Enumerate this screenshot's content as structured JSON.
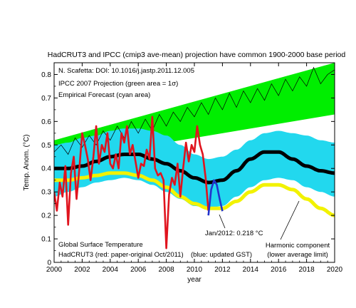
{
  "chart_data": {
    "type": "line",
    "title": "HadCRUT3 and IPCC (cmip3 ave-mean) projection have common 1900-2000 base period",
    "xlabel": "year",
    "ylabel": "Temp. Anom. (°C)",
    "xlim": [
      2000,
      2020
    ],
    "ylim": [
      0,
      0.85
    ],
    "x_ticks": [
      "2000",
      "2002",
      "2004",
      "2006",
      "2008",
      "2010",
      "2012",
      "2014",
      "2016",
      "2018",
      "2020"
    ],
    "y_ticks": [
      "0",
      "0.1",
      "0.2",
      "0.3",
      "0.4",
      "0.5",
      "0.6",
      "0.7",
      "0.8"
    ],
    "grid": false,
    "annotations": {
      "doi": "N. Scafetta: DOI: 10.1016/j.jastp.2011.12.005",
      "ipcc_label": "IPCC 2007 Projection (green area = 1σ)",
      "forecast_label": "Empirical Forecast (cyan area)",
      "gst_label": "Global Surface Temperature",
      "hadcrut_label": "HadCRUT3 (red: paper-original Oct/2011)",
      "blue_label": "(blue: updated GST)",
      "jan2012_label": "Jan/2012: 0.218 °C",
      "harmonic_label_1": "Harmonic component",
      "harmonic_label_2": "(lower average limit)"
    },
    "colors": {
      "ipcc_band": "#00ee00",
      "forecast_band": "#22d8ee",
      "forecast_center": "#000000",
      "harmonic": "#f2f200",
      "hadcrut": "#e0141e",
      "updated": "#2233cc",
      "ipcc_mean": "#000000"
    },
    "ipcc_band": {
      "x": [
        2000,
        2020
      ],
      "lower": [
        0.43,
        0.63
      ],
      "upper": [
        0.52,
        0.85
      ]
    },
    "ipcc_mean": {
      "x": [
        2000.0,
        2000.5,
        2001.0,
        2001.5,
        2002.0,
        2002.5,
        2003.0,
        2003.5,
        2004.0,
        2004.5,
        2005.0,
        2005.5,
        2006.0,
        2006.5,
        2007.0,
        2007.5,
        2008.0,
        2008.5,
        2009.0,
        2009.5,
        2010.0,
        2010.5,
        2011.0,
        2011.5,
        2012.0,
        2012.5,
        2013.0,
        2013.5,
        2014.0,
        2014.5,
        2015.0,
        2015.5,
        2016.0,
        2016.5,
        2017.0,
        2017.5,
        2018.0,
        2018.5,
        2019.0,
        2019.5,
        2020.0
      ],
      "y": [
        0.47,
        0.5,
        0.46,
        0.53,
        0.49,
        0.54,
        0.5,
        0.56,
        0.52,
        0.58,
        0.53,
        0.6,
        0.55,
        0.61,
        0.56,
        0.63,
        0.58,
        0.64,
        0.6,
        0.66,
        0.62,
        0.68,
        0.63,
        0.7,
        0.65,
        0.72,
        0.66,
        0.73,
        0.68,
        0.74,
        0.69,
        0.76,
        0.71,
        0.78,
        0.73,
        0.79,
        0.75,
        0.83,
        0.76,
        0.8,
        0.82
      ]
    },
    "forecast_band": {
      "x": [
        2000,
        2001,
        2002,
        2003,
        2004,
        2005,
        2006,
        2007,
        2008,
        2009,
        2010,
        2011,
        2012,
        2013,
        2014,
        2015,
        2016,
        2017,
        2018,
        2019,
        2020
      ],
      "lower": [
        0.28,
        0.3,
        0.32,
        0.34,
        0.35,
        0.36,
        0.35,
        0.33,
        0.3,
        0.27,
        0.24,
        0.23,
        0.24,
        0.28,
        0.32,
        0.35,
        0.36,
        0.35,
        0.32,
        0.3,
        0.28
      ],
      "upper": [
        0.5,
        0.51,
        0.53,
        0.54,
        0.56,
        0.57,
        0.57,
        0.56,
        0.54,
        0.5,
        0.46,
        0.44,
        0.45,
        0.48,
        0.52,
        0.55,
        0.56,
        0.55,
        0.54,
        0.52,
        0.51
      ]
    },
    "forecast_center": {
      "x": [
        2000,
        2001,
        2002,
        2003,
        2004,
        2005,
        2006,
        2007,
        2008,
        2009,
        2010,
        2011,
        2012,
        2013,
        2014,
        2015,
        2016,
        2017,
        2018,
        2019,
        2020
      ],
      "y": [
        0.4,
        0.4,
        0.41,
        0.43,
        0.45,
        0.46,
        0.46,
        0.44,
        0.42,
        0.39,
        0.36,
        0.34,
        0.35,
        0.39,
        0.44,
        0.47,
        0.47,
        0.44,
        0.41,
        0.39,
        0.38
      ]
    },
    "harmonic": {
      "x": [
        2000,
        2001,
        2002,
        2003,
        2004,
        2005,
        2006,
        2007,
        2008,
        2009,
        2010,
        2011,
        2012,
        2013,
        2014,
        2015,
        2016,
        2017,
        2018,
        2019,
        2020
      ],
      "y": [
        0.35,
        0.35,
        0.36,
        0.37,
        0.38,
        0.38,
        0.37,
        0.35,
        0.32,
        0.28,
        0.25,
        0.23,
        0.23,
        0.26,
        0.3,
        0.33,
        0.33,
        0.31,
        0.27,
        0.23,
        0.2
      ]
    },
    "hadcrut": {
      "x": [
        2000.0,
        2000.2,
        2000.4,
        2000.6,
        2000.8,
        2001.0,
        2001.2,
        2001.4,
        2001.6,
        2001.8,
        2002.0,
        2002.2,
        2002.4,
        2002.6,
        2002.8,
        2003.0,
        2003.2,
        2003.4,
        2003.6,
        2003.8,
        2004.0,
        2004.2,
        2004.4,
        2004.6,
        2004.8,
        2005.0,
        2005.2,
        2005.4,
        2005.6,
        2005.8,
        2006.0,
        2006.2,
        2006.4,
        2006.6,
        2006.8,
        2007.0,
        2007.2,
        2007.4,
        2007.6,
        2007.8,
        2008.0,
        2008.2,
        2008.4,
        2008.6,
        2008.8,
        2009.0,
        2009.2,
        2009.4,
        2009.6,
        2009.8,
        2010.0,
        2010.2,
        2010.4,
        2010.6,
        2010.8,
        2011.0
      ],
      "y": [
        0.3,
        0.22,
        0.34,
        0.28,
        0.41,
        0.16,
        0.38,
        0.45,
        0.27,
        0.4,
        0.55,
        0.5,
        0.44,
        0.35,
        0.45,
        0.58,
        0.42,
        0.5,
        0.47,
        0.55,
        0.42,
        0.4,
        0.46,
        0.4,
        0.55,
        0.51,
        0.58,
        0.46,
        0.5,
        0.43,
        0.36,
        0.42,
        0.41,
        0.48,
        0.44,
        0.62,
        0.4,
        0.37,
        0.38,
        0.35,
        0.06,
        0.29,
        0.36,
        0.33,
        0.42,
        0.28,
        0.4,
        0.51,
        0.43,
        0.5,
        0.47,
        0.58,
        0.5,
        0.46,
        0.36,
        0.22
      ]
    },
    "updated": {
      "x": [
        2011.0,
        2011.2,
        2011.4,
        2011.6,
        2011.8,
        2012.0
      ],
      "y": [
        0.2,
        0.31,
        0.35,
        0.33,
        0.27,
        0.218
      ]
    }
  }
}
